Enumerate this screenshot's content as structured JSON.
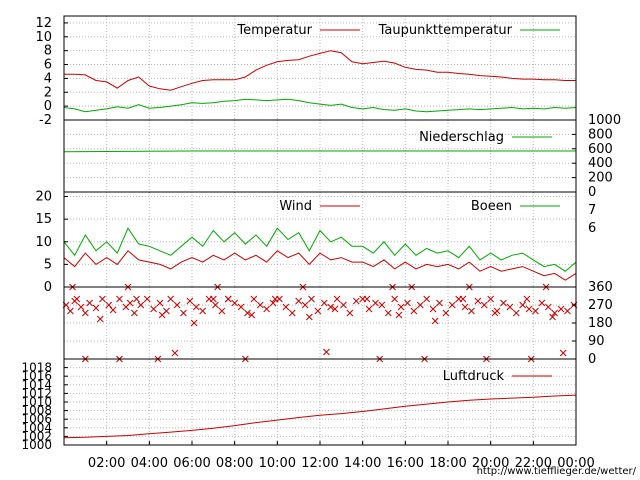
{
  "chart_data": [
    {
      "type": "line",
      "panel": "temperature",
      "ylim": [
        -2,
        13
      ],
      "yticks": [
        "12",
        "10",
        "8",
        "6",
        "4",
        "2",
        "0",
        "-2"
      ],
      "ytick_values": [
        12,
        10,
        8,
        6,
        4,
        2,
        0,
        -2
      ],
      "grid": true,
      "legend_position": "top-right",
      "series": [
        {
          "name": "Temperatur",
          "color": "#cc0000",
          "x": [
            0,
            0.5,
            1,
            1.5,
            2,
            2.5,
            3,
            3.5,
            4,
            4.5,
            5,
            5.5,
            6,
            6.5,
            7,
            7.5,
            8,
            8.5,
            9,
            9.5,
            10,
            10.5,
            11,
            11.5,
            12,
            12.5,
            13,
            13.5,
            14,
            14.5,
            15,
            15.5,
            16,
            16.5,
            17,
            17.5,
            18,
            18.5,
            19,
            19.5,
            20,
            20.5,
            21,
            21.5,
            22,
            22.5,
            23,
            23.5,
            24
          ],
          "values": [
            4.6,
            4.6,
            4.5,
            3.7,
            3.5,
            2.6,
            3.7,
            4.2,
            2.9,
            2.5,
            2.3,
            2.8,
            3.3,
            3.7,
            3.8,
            3.8,
            3.8,
            4.2,
            5.2,
            5.9,
            6.4,
            6.6,
            6.7,
            7.2,
            7.6,
            8.0,
            7.7,
            6.4,
            6.1,
            6.3,
            6.5,
            6.2,
            5.6,
            5.3,
            5.2,
            4.9,
            4.9,
            4.7,
            4.6,
            4.4,
            4.3,
            4.2,
            4.0,
            3.9,
            3.9,
            3.8,
            3.8,
            3.7,
            3.7
          ]
        },
        {
          "name": "Taupunkttemperatur",
          "color": "#00aa00",
          "x": [
            0,
            0.5,
            1,
            1.5,
            2,
            2.5,
            3,
            3.5,
            4,
            4.5,
            5,
            5.5,
            6,
            6.5,
            7,
            7.5,
            8,
            8.5,
            9,
            9.5,
            10,
            10.5,
            11,
            11.5,
            12,
            12.5,
            13,
            13.5,
            14,
            14.5,
            15,
            15.5,
            16,
            16.5,
            17,
            17.5,
            18,
            18.5,
            19,
            19.5,
            20,
            20.5,
            21,
            21.5,
            22,
            22.5,
            23,
            23.5,
            24
          ],
          "values": [
            -0.2,
            -0.4,
            -0.8,
            -0.6,
            -0.4,
            -0.1,
            -0.3,
            0.2,
            -0.3,
            -0.2,
            0.0,
            0.2,
            0.5,
            0.4,
            0.5,
            0.7,
            0.8,
            1.0,
            0.9,
            0.8,
            0.9,
            1.0,
            0.8,
            0.5,
            0.3,
            0.1,
            0.3,
            -0.2,
            -0.4,
            -0.2,
            -0.5,
            -0.6,
            -0.4,
            -0.7,
            -0.8,
            -0.7,
            -0.6,
            -0.5,
            -0.4,
            -0.5,
            -0.4,
            -0.3,
            -0.2,
            -0.4,
            -0.3,
            -0.4,
            -0.2,
            -0.3,
            -0.2
          ]
        }
      ]
    },
    {
      "type": "line",
      "panel": "precipitation",
      "ylim": [
        0,
        1000
      ],
      "yticks": [
        "1000",
        "800",
        "600",
        "400",
        "200",
        "0"
      ],
      "ytick_values": [
        1000,
        800,
        600,
        400,
        200,
        0
      ],
      "grid": true,
      "legend_position": "top-right",
      "series": [
        {
          "name": "Niederschlag",
          "color": "#00aa00",
          "x": [
            0,
            6,
            12,
            18,
            24
          ],
          "values": [
            560,
            570,
            570,
            570,
            570
          ]
        }
      ]
    },
    {
      "type": "line",
      "panel": "wind",
      "ylim": [
        0,
        21
      ],
      "yticks": [
        "20",
        "15",
        "10",
        "5",
        "0"
      ],
      "ytick_values": [
        20,
        15,
        10,
        5,
        0
      ],
      "right_ticks": [
        "7",
        "6"
      ],
      "right_tick_values": [
        17,
        13
      ],
      "grid": true,
      "legend_position": "top-right",
      "series": [
        {
          "name": "Wind",
          "color": "#cc0000",
          "x": [
            0,
            0.5,
            1,
            1.5,
            2,
            2.5,
            3,
            3.5,
            4,
            4.5,
            5,
            5.5,
            6,
            6.5,
            7,
            7.5,
            8,
            8.5,
            9,
            9.5,
            10,
            10.5,
            11,
            11.5,
            12,
            12.5,
            13,
            13.5,
            14,
            14.5,
            15,
            15.5,
            16,
            16.5,
            17,
            17.5,
            18,
            18.5,
            19,
            19.5,
            20,
            20.5,
            21,
            21.5,
            22,
            22.5,
            23,
            23.5,
            24
          ],
          "values": [
            6.5,
            4.5,
            7.5,
            5.0,
            6.5,
            5.0,
            8.0,
            6.0,
            5.5,
            5.0,
            4.0,
            5.5,
            6.5,
            5.5,
            7.0,
            6.0,
            7.5,
            6.0,
            7.0,
            5.5,
            8.0,
            6.5,
            7.5,
            5.0,
            7.5,
            6.0,
            6.5,
            5.5,
            5.5,
            4.5,
            6.0,
            4.0,
            5.5,
            4.0,
            5.0,
            4.5,
            5.0,
            4.0,
            5.5,
            3.5,
            4.5,
            3.5,
            4.0,
            4.5,
            3.5,
            2.5,
            3.0,
            1.5,
            3.0
          ]
        },
        {
          "name": "Boeen",
          "color": "#00aa00",
          "x": [
            0,
            0.5,
            1,
            1.5,
            2,
            2.5,
            3,
            3.5,
            4,
            4.5,
            5,
            5.5,
            6,
            6.5,
            7,
            7.5,
            8,
            8.5,
            9,
            9.5,
            10,
            10.5,
            11,
            11.5,
            12,
            12.5,
            13,
            13.5,
            14,
            14.5,
            15,
            15.5,
            16,
            16.5,
            17,
            17.5,
            18,
            18.5,
            19,
            19.5,
            20,
            20.5,
            21,
            21.5,
            22,
            22.5,
            23,
            23.5,
            24
          ],
          "values": [
            10.0,
            7.0,
            11.5,
            8.0,
            10.0,
            7.5,
            13.0,
            9.5,
            9.0,
            8.0,
            7.0,
            9.0,
            11.0,
            9.0,
            12.5,
            10.0,
            12.0,
            9.5,
            11.5,
            9.0,
            13.0,
            10.5,
            12.0,
            8.0,
            12.5,
            10.0,
            11.0,
            9.0,
            9.0,
            7.5,
            10.0,
            7.0,
            9.5,
            7.0,
            8.5,
            7.5,
            8.0,
            6.5,
            9.0,
            6.0,
            7.5,
            6.0,
            7.0,
            7.5,
            6.0,
            4.5,
            5.0,
            3.5,
            5.5
          ]
        }
      ]
    },
    {
      "type": "scatter",
      "panel": "wind-direction",
      "ylim": [
        0,
        360
      ],
      "yticks": [
        "360",
        "270",
        "180",
        "90",
        "0"
      ],
      "ytick_values": [
        360,
        270,
        180,
        90,
        0
      ],
      "grid": true,
      "series": [
        {
          "name": "",
          "color": "#cc0000",
          "x": [
            0.1,
            0.3,
            0.5,
            0.8,
            1.0,
            1.2,
            1.5,
            1.8,
            2.1,
            2.3,
            2.6,
            2.9,
            3.1,
            3.3,
            3.6,
            3.9,
            4.2,
            4.5,
            4.8,
            5.0,
            5.3,
            5.6,
            5.9,
            6.2,
            6.5,
            6.8,
            7.1,
            7.4,
            7.7,
            8.0,
            8.3,
            8.6,
            8.9,
            9.2,
            9.5,
            9.8,
            10.1,
            10.4,
            10.7,
            11.0,
            11.3,
            11.6,
            11.9,
            12.2,
            12.5,
            12.8,
            13.1,
            13.4,
            13.7,
            14.0,
            14.3,
            14.6,
            14.9,
            15.2,
            15.5,
            15.8,
            16.1,
            16.4,
            16.7,
            17.0,
            17.3,
            17.6,
            17.9,
            18.2,
            18.5,
            18.8,
            19.1,
            19.4,
            19.7,
            20.0,
            20.3,
            20.6,
            20.9,
            21.2,
            21.5,
            21.8,
            22.1,
            22.4,
            22.7,
            23.0,
            23.3,
            23.6,
            23.9,
            0.6,
            1.7,
            3.4,
            4.6,
            6.1,
            7.0,
            8.8,
            9.9,
            11.5,
            12.7,
            14.2,
            15.7,
            17.4,
            18.7,
            20.2,
            21.7,
            22.9,
            1.0,
            2.6,
            4.4,
            5.2,
            7.7,
            8.5,
            12.3,
            14.8,
            16.9,
            19.8,
            21.9,
            23.4,
            0.4,
            3.0,
            7.2,
            11.2,
            15.4,
            16.3,
            19.0,
            22.6
          ],
          "values": [
            270,
            240,
            290,
            260,
            230,
            280,
            255,
            300,
            270,
            245,
            300,
            260,
            280,
            230,
            270,
            300,
            250,
            280,
            240,
            300,
            270,
            230,
            290,
            260,
            240,
            300,
            270,
            240,
            300,
            280,
            260,
            230,
            300,
            270,
            250,
            280,
            300,
            260,
            230,
            290,
            270,
            300,
            240,
            280,
            260,
            300,
            270,
            230,
            290,
            300,
            250,
            280,
            270,
            230,
            300,
            260,
            280,
            240,
            270,
            300,
            250,
            280,
            230,
            270,
            300,
            260,
            240,
            290,
            270,
            300,
            240,
            280,
            260,
            230,
            270,
            250,
            240,
            280,
            260,
            230,
            250,
            240,
            270,
            300,
            200,
            300,
            220,
            180,
            300,
            220,
            300,
            210,
            250,
            300,
            220,
            190,
            300,
            230,
            300,
            210,
            0,
            0,
            0,
            30,
            300,
            0,
            35,
            0,
            0,
            0,
            0,
            30,
            360,
            360,
            360,
            360,
            360,
            360,
            360,
            360
          ]
        }
      ]
    },
    {
      "type": "line",
      "panel": "pressure",
      "ylim": [
        1000,
        1020
      ],
      "yticks": [
        "1018",
        "1016",
        "1014",
        "1012",
        "1010",
        "1008",
        "1006",
        "1004",
        "1002",
        "1000"
      ],
      "ytick_values": [
        1018,
        1016,
        1014,
        1012,
        1010,
        1008,
        1006,
        1004,
        1002,
        1000
      ],
      "grid": true,
      "legend_position": "top-right",
      "series": [
        {
          "name": "Luftdruck",
          "color": "#cc0000",
          "x": [
            0,
            1,
            2,
            3,
            4,
            5,
            6,
            7,
            8,
            9,
            10,
            11,
            12,
            13,
            14,
            15,
            16,
            17,
            18,
            19,
            20,
            21,
            22,
            23,
            24
          ],
          "values": [
            1001.7,
            1001.8,
            1002.0,
            1002.2,
            1002.6,
            1003.0,
            1003.4,
            1003.9,
            1004.5,
            1005.2,
            1005.8,
            1006.4,
            1006.9,
            1007.3,
            1007.8,
            1008.4,
            1009.0,
            1009.5,
            1010.0,
            1010.4,
            1010.7,
            1010.9,
            1011.1,
            1011.4,
            1011.6
          ]
        }
      ]
    }
  ],
  "x_axis": {
    "xlim": [
      0,
      24
    ],
    "tick_labels": [
      "02:00",
      "04:00",
      "06:00",
      "08:00",
      "10:00",
      "12:00",
      "14:00",
      "16:00",
      "18:00",
      "20:00",
      "22:00",
      "00:00"
    ],
    "tick_values": [
      2,
      4,
      6,
      8,
      10,
      12,
      14,
      16,
      18,
      20,
      22,
      24
    ]
  },
  "footer": {
    "url": "http://www.tiefflieger.de/wetter/"
  },
  "colors": {
    "grid": "#b8b8b8",
    "frame": "#000000"
  }
}
